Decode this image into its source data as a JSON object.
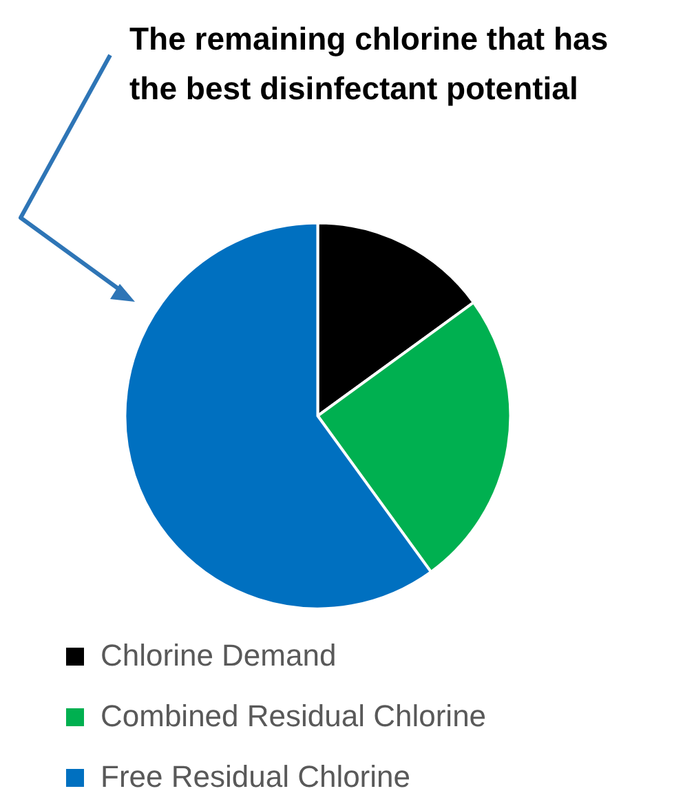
{
  "chart_data": {
    "type": "pie",
    "categories": [
      "Chlorine Demand",
      "Combined Residual Chlorine",
      "Free Residual Chlorine"
    ],
    "values": [
      15,
      25,
      60
    ],
    "colors": [
      "#000000",
      "#00b050",
      "#0070c0"
    ],
    "legend": "bottom",
    "annotations": [
      "The remaining chlorine that has the best disinfectant potential"
    ]
  }
}
